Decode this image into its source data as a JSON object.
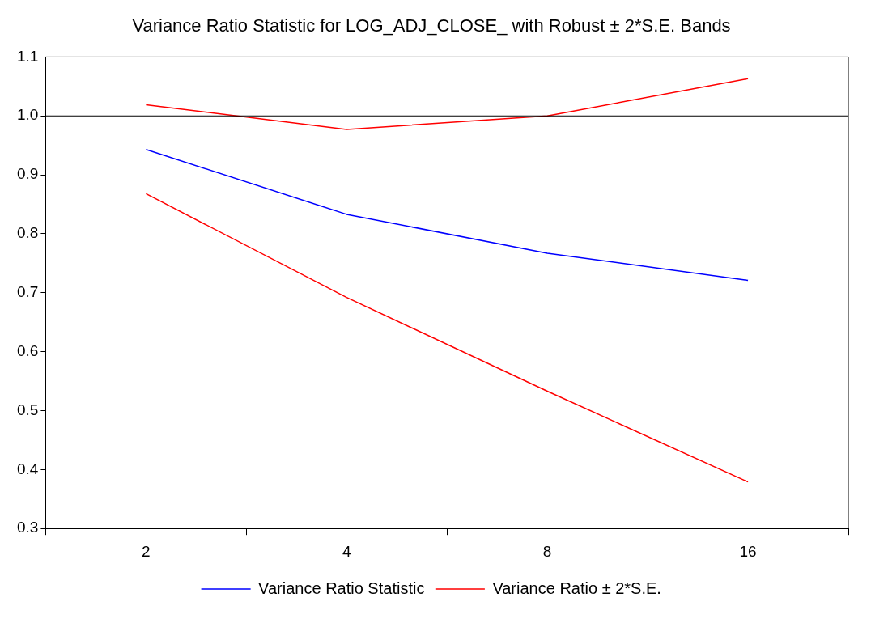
{
  "chart_data": {
    "type": "line",
    "title": "Variance Ratio Statistic for LOG_ADJ_CLOSE_ with Robust ± 2*S.E. Bands",
    "categories": [
      "2",
      "4",
      "8",
      "16"
    ],
    "series": [
      {
        "name": "Variance Ratio Statistic",
        "color": "#0000ff",
        "values": [
          0.943,
          0.833,
          0.767,
          0.721
        ]
      },
      {
        "name": "Variance Ratio ± 2*S.E.",
        "color": "#ff0000",
        "values": [
          0.868,
          0.692,
          0.533,
          0.379
        ]
      },
      {
        "color": "#ff0000",
        "values": [
          1.019,
          0.977,
          1.0,
          1.063
        ]
      }
    ],
    "ylim": [
      0.3,
      1.1
    ],
    "yticks": [
      0.3,
      0.4,
      0.5,
      0.6,
      0.7,
      0.8,
      0.9,
      {
        "value": 1.0,
        "label": "1.0"
      },
      1.1
    ],
    "ref_lines": [
      {
        "axis": "y",
        "value": 1.0,
        "color": "#000000"
      }
    ],
    "grid": false,
    "legend": "bottom",
    "marker": "none",
    "line_style": "solid"
  }
}
